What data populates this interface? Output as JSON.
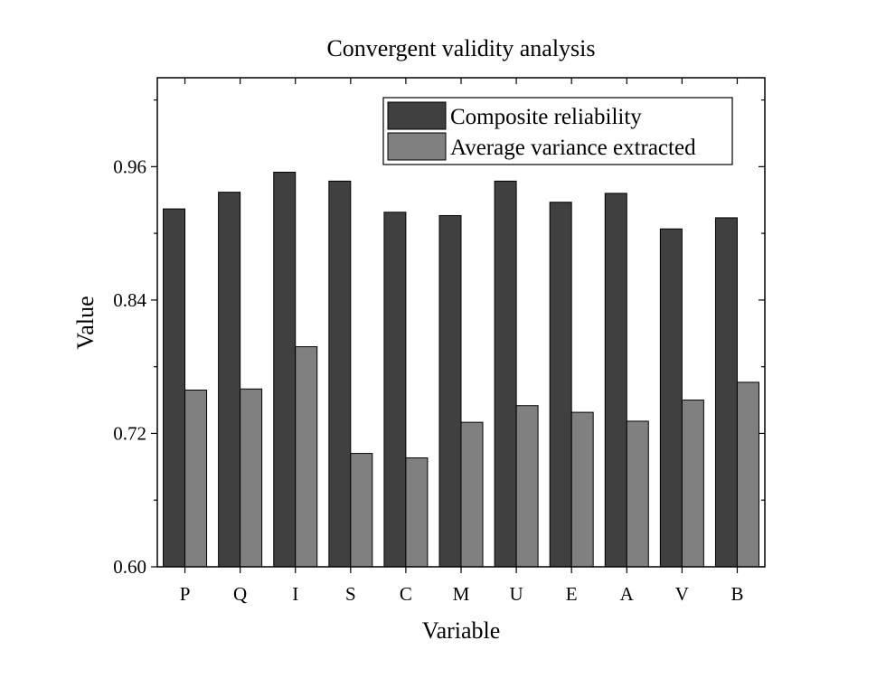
{
  "chart_data": {
    "type": "bar",
    "title": "Convergent validity analysis",
    "xlabel": "Variable",
    "ylabel": "Value",
    "ylim": [
      0.6,
      1.04
    ],
    "yticks": [
      "0.60",
      "0.72",
      "0.84",
      "0.96"
    ],
    "yticks_values": [
      0.6,
      0.72,
      0.84,
      0.96
    ],
    "categories": [
      "P",
      "Q",
      "I",
      "S",
      "C",
      "M",
      "U",
      "E",
      "A",
      "V",
      "B"
    ],
    "series": [
      {
        "name": "Composite reliability",
        "color": "#404040",
        "values": [
          0.922,
          0.937,
          0.955,
          0.947,
          0.919,
          0.916,
          0.947,
          0.928,
          0.936,
          0.904,
          0.914
        ]
      },
      {
        "name": "Average variance extracted",
        "color": "#808080",
        "values": [
          0.759,
          0.76,
          0.798,
          0.702,
          0.698,
          0.73,
          0.745,
          0.739,
          0.731,
          0.75,
          0.766
        ]
      }
    ],
    "grid": false,
    "legend_position": "top-right"
  }
}
